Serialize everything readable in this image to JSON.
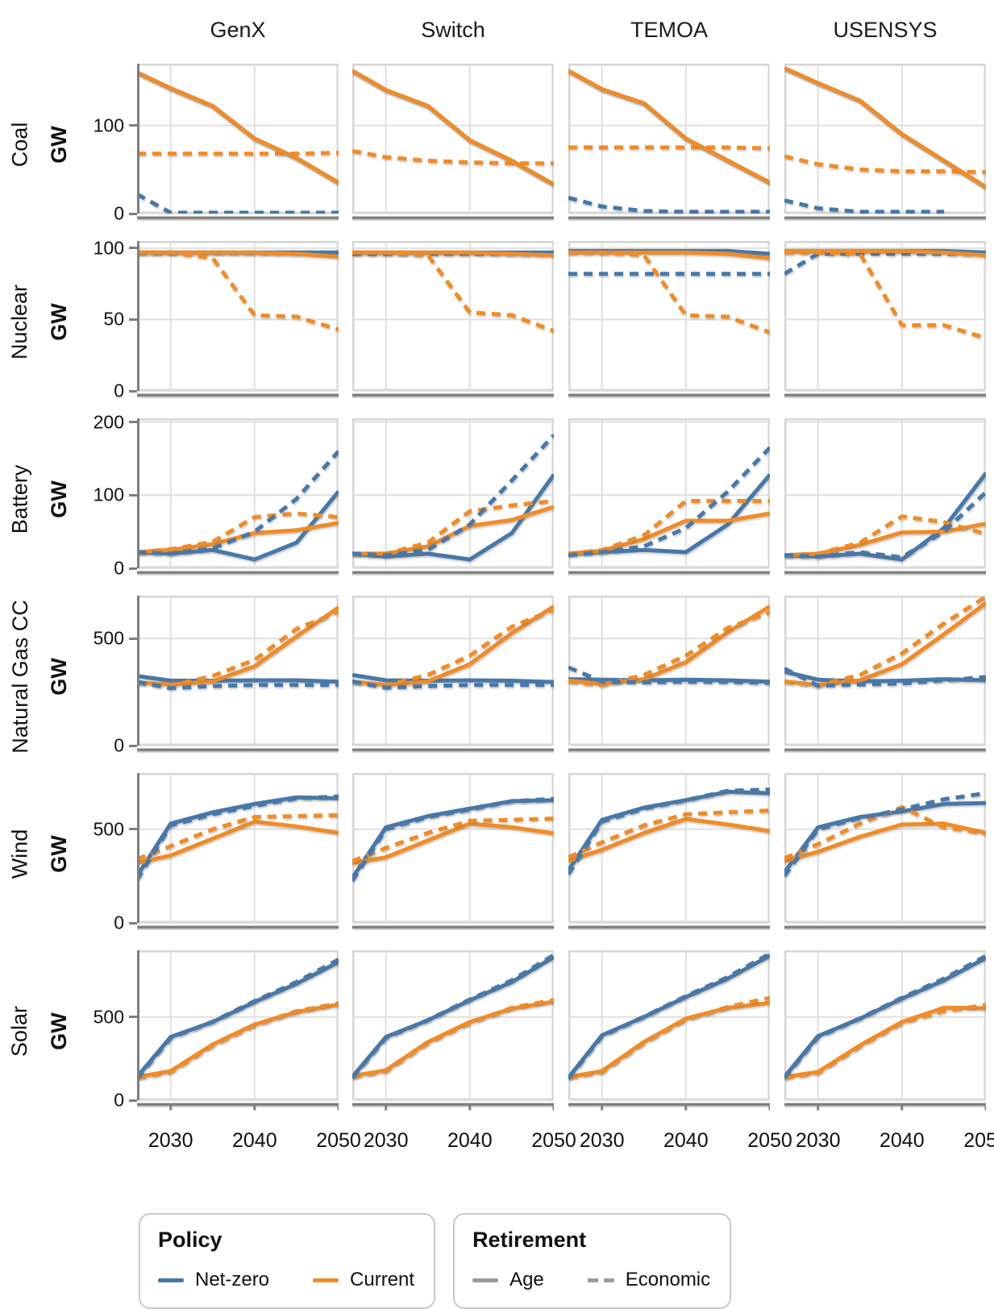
{
  "chart_data": {
    "type": "line",
    "title": "",
    "columns": [
      "GenX",
      "Switch",
      "TEMOA",
      "USENSYS"
    ],
    "row_ylabel": "GW",
    "x": [
      2026,
      2030,
      2035,
      2040,
      2045,
      2050
    ],
    "xdomain": [
      2026,
      2050
    ],
    "xticks": [
      2030,
      2040,
      2050
    ],
    "xtick_labels": [
      "2030",
      "2040",
      "2050"
    ],
    "grid": true,
    "colors": {
      "netzero": "#4878A8",
      "current": "#F08C28",
      "axis": "#7e7e7e",
      "gridline": "#e0e0e0",
      "panel_border": "#d5d5d5"
    },
    "series_meta": [
      {
        "key": "netzero_age",
        "policy": "Net-zero",
        "retirement": "Age",
        "color": "netzero",
        "dash": false
      },
      {
        "key": "netzero_economic",
        "policy": "Net-zero",
        "retirement": "Economic",
        "color": "netzero",
        "dash": true
      },
      {
        "key": "current_age",
        "policy": "Current",
        "retirement": "Age",
        "color": "current",
        "dash": false
      },
      {
        "key": "current_economic",
        "policy": "Current",
        "retirement": "Economic",
        "color": "current",
        "dash": true
      }
    ],
    "rows": [
      {
        "label": "Coal",
        "ylabel": "GW",
        "ymax": 170,
        "yticks": [
          0,
          100
        ],
        "draw_order": [
          "netzero_age",
          "netzero_economic",
          "current_economic",
          "current_age"
        ],
        "panels": [
          {
            "netzero_age": [
              160,
              142,
              122,
              85,
              63,
              35
            ],
            "netzero_economic": [
              22,
              1,
              1,
              1,
              1,
              1
            ],
            "current_age": [
              160,
              142,
              122,
              85,
              63,
              35
            ],
            "current_economic": [
              68,
              68,
              68,
              68,
              68,
              69
            ]
          },
          {
            "netzero_age": [
              162,
              140,
              122,
              83,
              60,
              33
            ],
            "netzero_economic": null,
            "current_age": [
              162,
              140,
              122,
              83,
              60,
              33
            ],
            "current_economic": [
              71,
              64,
              60,
              58,
              57,
              57
            ]
          },
          {
            "netzero_age": [
              162,
              141,
              125,
              85,
              60,
              35
            ],
            "netzero_economic": [
              18,
              8,
              3,
              2,
              2,
              2
            ],
            "current_age": [
              162,
              141,
              125,
              85,
              60,
              35
            ],
            "current_economic": [
              75,
              75,
              75,
              75,
              75,
              74
            ]
          },
          {
            "netzero_age": [
              165,
              148,
              128,
              90,
              60,
              30
            ],
            "netzero_economic": [
              15,
              6,
              2,
              2,
              2,
              null
            ],
            "current_age": [
              165,
              148,
              128,
              90,
              60,
              30
            ],
            "current_economic": [
              65,
              56,
              50,
              48,
              48,
              47
            ]
          }
        ]
      },
      {
        "label": "Nuclear",
        "ylabel": "GW",
        "ymax": 105,
        "yticks": [
          0,
          50,
          100
        ],
        "draw_order": [
          "netzero_economic",
          "netzero_age",
          "current_age",
          "current_economic"
        ],
        "panels": [
          {
            "netzero_age": [
              97,
              97,
              97,
              97,
              97,
              97
            ],
            "netzero_economic": [
              97,
              97,
              97,
              97,
              97,
              97
            ],
            "current_age": [
              97,
              97,
              97,
              97,
              96,
              94
            ],
            "current_economic": [
              97,
              97,
              93,
              53,
              52,
              43
            ]
          },
          {
            "netzero_age": [
              97,
              97,
              97,
              97,
              97,
              97
            ],
            "netzero_economic": [
              96,
              96,
              96,
              96,
              96,
              96
            ],
            "current_age": [
              97,
              97,
              97,
              97,
              96,
              95
            ],
            "current_economic": [
              97,
              97,
              95,
              55,
              53,
              42
            ]
          },
          {
            "netzero_age": [
              98,
              98,
              98,
              98,
              98,
              96
            ],
            "netzero_economic": [
              82,
              82,
              82,
              82,
              82,
              82
            ],
            "current_age": [
              97,
              97,
              97,
              97,
              96,
              93
            ],
            "current_economic": [
              97,
              97,
              95,
              53,
              52,
              41
            ]
          },
          {
            "netzero_age": [
              98,
              98,
              98,
              98,
              98,
              97
            ],
            "netzero_economic": [
              82,
              96,
              96,
              96,
              96,
              96
            ],
            "current_age": [
              98,
              98,
              98,
              98,
              97,
              95
            ],
            "current_economic": [
              97,
              97,
              96,
              46,
              46,
              37
            ]
          }
        ]
      },
      {
        "label": "Battery",
        "ylabel": "GW",
        "ymax": 205,
        "yticks": [
          0,
          100,
          200
        ],
        "draw_order": [
          "netzero_age",
          "current_age",
          "current_economic",
          "netzero_economic"
        ],
        "panels": [
          {
            "netzero_age": [
              22,
              20,
              25,
              12,
              35,
              105
            ],
            "netzero_economic": [
              22,
              20,
              27,
              50,
              95,
              160
            ],
            "current_age": [
              22,
              25,
              33,
              48,
              52,
              62
            ],
            "current_economic": [
              22,
              26,
              36,
              70,
              75,
              70
            ]
          },
          {
            "netzero_age": [
              20,
              16,
              20,
              12,
              48,
              128
            ],
            "netzero_economic": [
              20,
              18,
              25,
              60,
              120,
              182
            ],
            "current_age": [
              20,
              20,
              30,
              58,
              66,
              84
            ],
            "current_economic": [
              20,
              20,
              35,
              78,
              86,
              92
            ]
          },
          {
            "netzero_age": [
              20,
              22,
              25,
              22,
              60,
              128
            ],
            "netzero_economic": [
              18,
              22,
              30,
              55,
              105,
              165
            ],
            "current_age": [
              20,
              24,
              40,
              65,
              65,
              75
            ],
            "current_economic": [
              20,
              25,
              45,
              92,
              92,
              92
            ]
          },
          {
            "netzero_age": [
              18,
              16,
              20,
              12,
              55,
              130
            ],
            "netzero_economic": [
              18,
              16,
              22,
              15,
              50,
              104
            ],
            "current_age": [
              18,
              20,
              32,
              49,
              50,
              61
            ],
            "current_economic": [
              18,
              20,
              35,
              71,
              63,
              47
            ]
          }
        ]
      },
      {
        "label": "Natural Gas CC",
        "ylabel": "GW",
        "ymax": 700,
        "yticks": [
          0,
          500
        ],
        "draw_order": [
          "netzero_age",
          "current_age",
          "current_economic",
          "netzero_economic"
        ],
        "panels": [
          {
            "netzero_age": [
              325,
              303,
              303,
              305,
              305,
              298
            ],
            "netzero_economic": [
              298,
              268,
              278,
              283,
              283,
              283
            ],
            "current_age": [
              295,
              285,
              300,
              370,
              510,
              645
            ],
            "current_economic": [
              295,
              280,
              325,
              400,
              545,
              625
            ]
          },
          {
            "netzero_age": [
              330,
              305,
              303,
              305,
              303,
              297
            ],
            "netzero_economic": [
              300,
              270,
              278,
              283,
              283,
              283
            ],
            "current_age": [
              298,
              283,
              300,
              380,
              525,
              650
            ],
            "current_economic": [
              297,
              282,
              330,
              420,
              555,
              635
            ]
          },
          {
            "netzero_age": [
              310,
              308,
              305,
              308,
              305,
              298
            ],
            "netzero_economic": [
              365,
              300,
              295,
              298,
              297,
              293
            ],
            "current_age": [
              303,
              288,
              310,
              390,
              530,
              650
            ],
            "current_economic": [
              300,
              283,
              330,
              420,
              550,
              622
            ]
          },
          {
            "netzero_age": [
              345,
              308,
              300,
              303,
              310,
              305
            ],
            "netzero_economic": [
              360,
              280,
              285,
              290,
              305,
              320
            ],
            "current_age": [
              300,
              283,
              305,
              380,
              520,
              665
            ],
            "current_economic": [
              298,
              282,
              330,
              430,
              570,
              695
            ]
          }
        ]
      },
      {
        "label": "Wind",
        "ylabel": "GW",
        "ymax": 800,
        "yticks": [
          0,
          500
        ],
        "draw_order": [
          "netzero_age",
          "current_age",
          "current_economic",
          "netzero_economic"
        ],
        "panels": [
          {
            "netzero_age": [
              250,
              530,
              590,
              635,
              670,
              665
            ],
            "netzero_economic": [
              230,
              520,
              580,
              625,
              665,
              675
            ],
            "current_age": [
              320,
              360,
              450,
              540,
              515,
              480
            ],
            "current_economic": [
              340,
              410,
              500,
              565,
              570,
              575
            ]
          },
          {
            "netzero_age": [
              240,
              510,
              570,
              610,
              650,
              655
            ],
            "netzero_economic": [
              225,
              500,
              565,
              605,
              650,
              662
            ],
            "current_age": [
              320,
              350,
              440,
              530,
              510,
              478
            ],
            "current_economic": [
              330,
              400,
              480,
              545,
              550,
              557
            ]
          },
          {
            "netzero_age": [
              280,
              550,
              615,
              655,
              700,
              692
            ],
            "netzero_economic": [
              260,
              540,
              610,
              655,
              705,
              712
            ],
            "current_age": [
              330,
              390,
              480,
              555,
              525,
              490
            ],
            "current_economic": [
              350,
              430,
              520,
              580,
              590,
              600
            ]
          },
          {
            "netzero_age": [
              270,
              510,
              565,
              595,
              635,
              640
            ],
            "netzero_economic": [
              250,
              500,
              560,
              605,
              660,
              692
            ],
            "current_age": [
              330,
              380,
              460,
              525,
              530,
              480
            ],
            "current_economic": [
              345,
              420,
              530,
              618,
              510,
              478
            ]
          }
        ]
      },
      {
        "label": "Solar",
        "ylabel": "GW",
        "ymax": 900,
        "yticks": [
          0,
          500
        ],
        "draw_order": [
          "netzero_age",
          "current_age",
          "current_economic",
          "netzero_economic"
        ],
        "panels": [
          {
            "netzero_age": [
              140,
              380,
              470,
              590,
              700,
              830
            ],
            "netzero_economic": [
              130,
              375,
              472,
              595,
              710,
              845
            ],
            "current_age": [
              140,
              175,
              335,
              455,
              530,
              575
            ],
            "current_economic": [
              135,
              170,
              330,
              450,
              535,
              582
            ]
          },
          {
            "netzero_age": [
              140,
              380,
              480,
              600,
              710,
              860
            ],
            "netzero_economic": [
              135,
              375,
              482,
              605,
              720,
              872
            ],
            "current_age": [
              145,
              180,
              350,
              470,
              550,
              592
            ],
            "current_economic": [
              140,
              175,
              345,
              465,
              555,
              602
            ]
          },
          {
            "netzero_age": [
              135,
              390,
              500,
              620,
              730,
              868
            ],
            "netzero_economic": [
              130,
              385,
              502,
              625,
              740,
              880
            ],
            "current_age": [
              140,
              175,
              350,
              490,
              555,
              585
            ],
            "current_economic": [
              135,
              170,
              345,
              485,
              560,
              615
            ]
          },
          {
            "netzero_age": [
              140,
              385,
              490,
              610,
              720,
              855
            ],
            "netzero_economic": [
              135,
              380,
              492,
              615,
              730,
              866
            ],
            "current_age": [
              140,
              170,
              330,
              470,
              555,
              552
            ],
            "current_economic": [
              135,
              165,
              325,
              465,
              535,
              572
            ]
          }
        ]
      }
    ],
    "legend": {
      "policy": {
        "title": "Policy",
        "items": [
          {
            "label": "Net-zero",
            "color": "#4878A8"
          },
          {
            "label": "Current",
            "color": "#F08C28"
          }
        ]
      },
      "retirement": {
        "title": "Retirement",
        "items": [
          {
            "label": "Age",
            "dash": false
          },
          {
            "label": "Economic",
            "dash": true
          }
        ]
      }
    }
  }
}
